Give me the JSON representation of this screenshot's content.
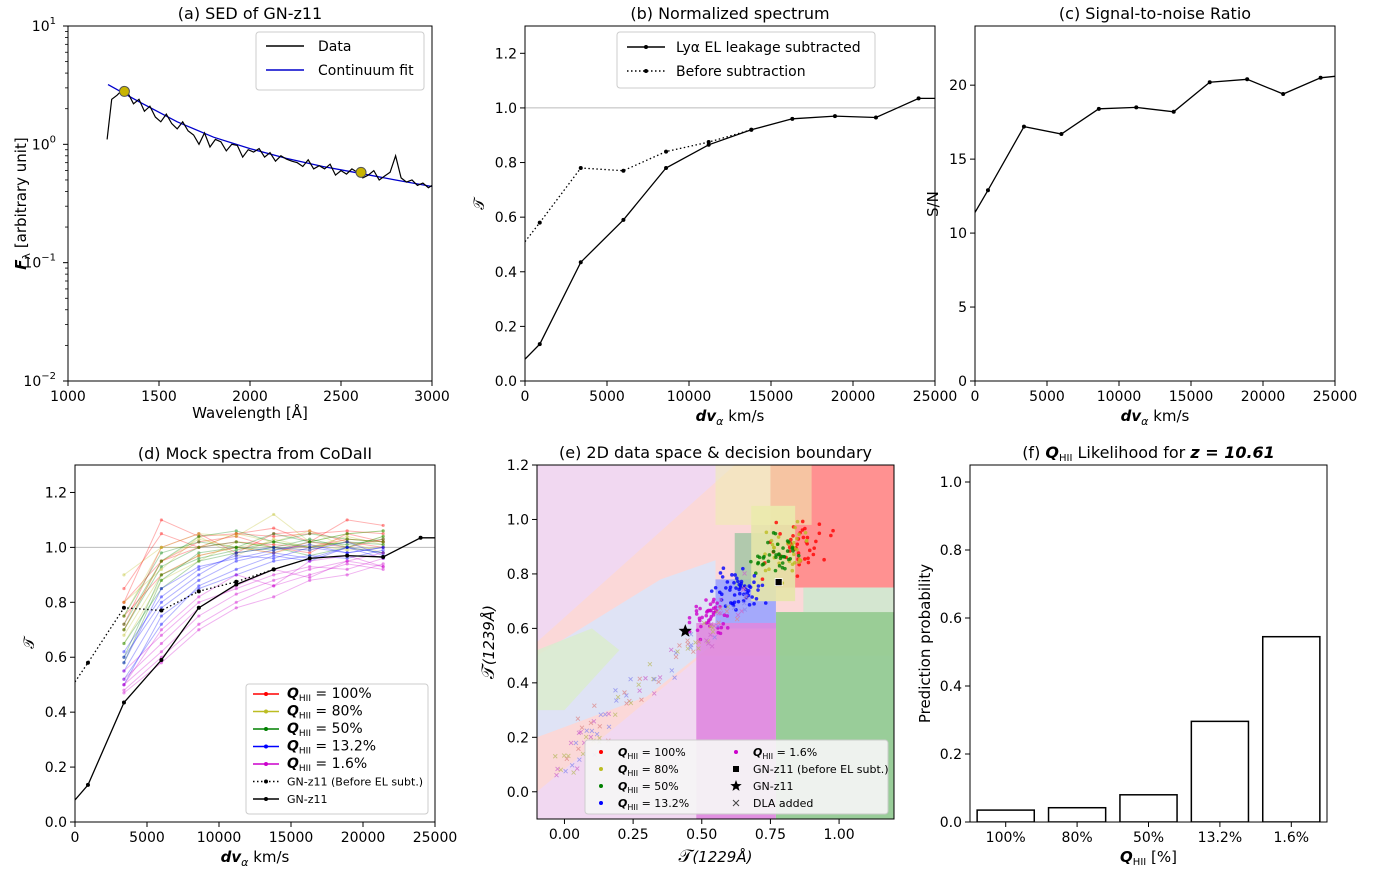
{
  "chart_data": [
    {
      "panel": "a",
      "type": "line",
      "title": "(a) SED of GN-z11",
      "xlabel": "Wavelength [Å]",
      "ylabel": "F_λ [arbitrary unit]",
      "yscale": "log",
      "xlim": [
        1000,
        3000
      ],
      "ylim": [
        0.01,
        10
      ],
      "xticks": [
        "1000",
        "1500",
        "2000",
        "2500",
        "3000"
      ],
      "yticks": [
        {
          "base": "10",
          "exp": "1",
          "v": 10
        },
        {
          "base": "10",
          "exp": "0",
          "v": 1
        },
        {
          "base": "10",
          "exp": "−1",
          "v": 0.1
        },
        {
          "base": "10",
          "exp": "−2",
          "v": 0.01
        }
      ],
      "legend_position": "upper right",
      "series": [
        {
          "name": "Data",
          "color": "#000000",
          "x": [
            1215,
            1240,
            1270,
            1300,
            1330,
            1360,
            1390,
            1420,
            1450,
            1480,
            1510,
            1540,
            1570,
            1600,
            1630,
            1660,
            1690,
            1720,
            1750,
            1780,
            1810,
            1840,
            1870,
            1900,
            1930,
            1960,
            1990,
            2020,
            2050,
            2080,
            2110,
            2140,
            2170,
            2200,
            2230,
            2260,
            2290,
            2320,
            2350,
            2380,
            2410,
            2440,
            2470,
            2500,
            2530,
            2560,
            2590,
            2620,
            2650,
            2680,
            2710,
            2740,
            2770,
            2800,
            2830,
            2860,
            2890,
            2920,
            2950,
            2980,
            3000
          ],
          "y": [
            1.1,
            2.4,
            2.6,
            2.9,
            2.7,
            2.2,
            2.4,
            1.9,
            2.1,
            1.7,
            1.55,
            1.8,
            1.5,
            1.35,
            1.55,
            1.3,
            1.2,
            1.0,
            1.25,
            0.95,
            1.1,
            1.05,
            0.88,
            1.0,
            0.98,
            0.78,
            0.9,
            0.86,
            0.92,
            0.78,
            0.85,
            0.72,
            0.8,
            0.75,
            0.72,
            0.7,
            0.65,
            0.74,
            0.62,
            0.66,
            0.62,
            0.68,
            0.55,
            0.6,
            0.56,
            0.62,
            0.58,
            0.52,
            0.55,
            0.6,
            0.5,
            0.54,
            0.58,
            0.8,
            0.52,
            0.48,
            0.5,
            0.45,
            0.47,
            0.43,
            0.45
          ]
        },
        {
          "name": "Continuum fit",
          "color": "#0000cc",
          "x": [
            1220,
            1400,
            1600,
            1800,
            2000,
            2200,
            2400,
            2600,
            2800,
            3000
          ],
          "y": [
            3.2,
            2.25,
            1.55,
            1.15,
            0.92,
            0.76,
            0.65,
            0.57,
            0.5,
            0.44
          ]
        },
        {
          "name": "",
          "type": "scatter",
          "color": "#c8b400",
          "x": [
            1310,
            2610
          ],
          "y": [
            2.8,
            0.58
          ]
        }
      ]
    },
    {
      "panel": "b",
      "type": "line",
      "title": "(b) Normalized spectrum",
      "xlabel": "km/s",
      "ylabel": "",
      "xlim": [
        0,
        25000
      ],
      "ylim": [
        0,
        1.3
      ],
      "xticks": [
        "0",
        "5000",
        "10000",
        "15000",
        "20000",
        "25000"
      ],
      "yticks": [
        "0.0",
        "0.2",
        "0.4",
        "0.6",
        "0.8",
        "1.0",
        "1.2"
      ],
      "hline": 1.0,
      "legend_position": "upper right",
      "series": [
        {
          "name": "Lyα EL leakage subtracted",
          "style": "solid",
          "x": [
            0,
            900,
            3400,
            6000,
            8600,
            11200,
            13800,
            16300,
            18900,
            21400,
            24000,
            25000
          ],
          "y": [
            0.08,
            0.135,
            0.435,
            0.59,
            0.78,
            0.865,
            0.92,
            0.96,
            0.97,
            0.965,
            1.035,
            1.035
          ]
        },
        {
          "name": "Before subtraction",
          "style": "dotted",
          "x": [
            0,
            900,
            3400,
            6000,
            8600,
            11200,
            13800
          ],
          "y": [
            0.51,
            0.58,
            0.78,
            0.77,
            0.84,
            0.875,
            0.92
          ]
        }
      ]
    },
    {
      "panel": "c",
      "type": "line",
      "title": "(c) Signal-to-noise Ratio",
      "xlabel": "km/s",
      "ylabel": "S/N",
      "xlim": [
        0,
        25000
      ],
      "ylim": [
        0,
        24
      ],
      "xticks": [
        "0",
        "5000",
        "10000",
        "15000",
        "20000",
        "25000"
      ],
      "yticks": [
        "0",
        "5",
        "10",
        "15",
        "20"
      ],
      "series": [
        {
          "name": "",
          "x": [
            0,
            900,
            3400,
            6000,
            8600,
            11200,
            13800,
            16300,
            18900,
            21400,
            24000,
            25000
          ],
          "y": [
            11.4,
            12.9,
            17.2,
            16.7,
            18.4,
            18.5,
            18.2,
            20.2,
            20.4,
            19.4,
            20.5,
            20.6
          ]
        }
      ]
    },
    {
      "panel": "d",
      "type": "line",
      "title": "(d) Mock spectra from CoDaII",
      "xlabel": "km/s",
      "ylabel": "",
      "xlim": [
        0,
        25000
      ],
      "ylim": [
        0,
        1.3
      ],
      "xticks": [
        "0",
        "5000",
        "10000",
        "15000",
        "20000",
        "25000"
      ],
      "yticks": [
        "0.0",
        "0.2",
        "0.4",
        "0.6",
        "0.8",
        "1.0",
        "1.2"
      ],
      "hline": 1.0,
      "legend_position": "lower right",
      "legend": [
        {
          "label": "= 100%",
          "color": "#ff0000",
          "style": "solid"
        },
        {
          "label": "= 80%",
          "color": "#bcbd22",
          "style": "solid"
        },
        {
          "label": "= 50%",
          "color": "#008000",
          "style": "solid"
        },
        {
          "label": "= 13.2%",
          "color": "#0000ff",
          "style": "solid"
        },
        {
          "label": "= 1.6%",
          "color": "#cc00cc",
          "style": "solid"
        },
        {
          "label": "GN-z11 (Before EL subt.)",
          "color": "#000000",
          "style": "dotted"
        },
        {
          "label": "GN-z11",
          "color": "#000000",
          "style": "solid"
        }
      ],
      "mock_x": [
        3400,
        6000,
        8600,
        11200,
        13800,
        16300,
        18900,
        21400
      ],
      "mock_groups": [
        {
          "color": "#ff0000",
          "curves": [
            [
              0.8,
              1.1,
              1.04,
              1.05,
              1.04,
              1.05,
              1.06,
              1.05
            ],
            [
              0.7,
              0.95,
              1.0,
              1.02,
              1.01,
              1.0,
              1.03,
              1.02
            ],
            [
              0.85,
              1.05,
              1.0,
              1.05,
              1.07,
              1.02,
              1.1,
              1.08
            ],
            [
              0.75,
              0.9,
              0.97,
              1.0,
              0.98,
              1.02,
              1.0,
              1.03
            ],
            [
              0.72,
              1.0,
              1.05,
              0.98,
              1.05,
              1.06,
              1.02,
              1.0
            ],
            [
              0.8,
              0.95,
              1.02,
              1.04,
              1.0,
              0.98,
              1.05,
              1.02
            ]
          ]
        },
        {
          "color": "#bcbd22",
          "curves": [
            [
              0.7,
              0.95,
              1.03,
              1.0,
              1.02,
              1.0,
              1.04,
              1.01
            ],
            [
              0.9,
              1.0,
              1.05,
              1.04,
              1.12,
              1.02,
              1.05,
              1.06
            ],
            [
              0.68,
              0.9,
              0.97,
              1.0,
              0.98,
              1.01,
              0.99,
              1.0
            ],
            [
              0.75,
              1.0,
              1.0,
              1.05,
              1.02,
              1.06,
              1.0,
              1.04
            ],
            [
              0.8,
              0.92,
              1.04,
              0.97,
              1.03,
              1.0,
              1.02,
              0.98
            ],
            [
              0.65,
              0.88,
              0.95,
              1.02,
              1.0,
              0.99,
              1.03,
              1.02
            ]
          ]
        },
        {
          "color": "#008000",
          "curves": [
            [
              0.7,
              0.93,
              1.0,
              1.02,
              1.0,
              1.03,
              1.0,
              1.04
            ],
            [
              0.6,
              0.9,
              0.96,
              0.99,
              1.02,
              1.0,
              1.02,
              1.01
            ],
            [
              0.75,
              0.98,
              1.02,
              1.0,
              1.05,
              1.02,
              1.05,
              1.06
            ],
            [
              0.65,
              0.85,
              0.95,
              0.98,
              1.0,
              0.97,
              1.0,
              0.98
            ],
            [
              0.72,
              0.95,
              1.04,
              1.06,
              1.02,
              1.05,
              1.03,
              1.02
            ],
            [
              0.58,
              0.88,
              0.98,
              1.0,
              0.99,
              1.02,
              1.01,
              1.03
            ]
          ]
        },
        {
          "color": "#0000ff",
          "curves": [
            [
              0.55,
              0.78,
              0.88,
              0.95,
              0.98,
              0.96,
              1.0,
              0.98
            ],
            [
              0.62,
              0.82,
              0.92,
              0.97,
              0.96,
              1.0,
              0.98,
              1.0
            ],
            [
              0.5,
              0.75,
              0.85,
              0.9,
              0.95,
              0.97,
              0.96,
              0.99
            ],
            [
              0.6,
              0.8,
              0.9,
              0.98,
              1.0,
              0.99,
              1.02,
              0.97
            ],
            [
              0.58,
              0.85,
              0.93,
              0.96,
              0.99,
              1.01,
              0.98,
              1.0
            ],
            [
              0.52,
              0.72,
              0.86,
              0.92,
              0.97,
              0.95,
              1.0,
              0.96
            ]
          ]
        },
        {
          "color": "#cc00cc",
          "curves": [
            [
              0.5,
              0.62,
              0.75,
              0.83,
              0.88,
              0.92,
              0.95,
              0.93
            ],
            [
              0.55,
              0.68,
              0.8,
              0.85,
              0.9,
              0.93,
              0.92,
              0.96
            ],
            [
              0.48,
              0.6,
              0.72,
              0.8,
              0.86,
              0.9,
              0.94,
              0.92
            ],
            [
              0.52,
              0.65,
              0.78,
              0.86,
              0.92,
              0.89,
              0.95,
              0.98
            ],
            [
              0.47,
              0.58,
              0.7,
              0.78,
              0.82,
              0.88,
              0.9,
              0.94
            ],
            [
              0.5,
              0.7,
              0.82,
              0.9,
              0.86,
              0.95,
              0.97,
              0.93
            ]
          ]
        }
      ],
      "series": [
        {
          "name": "GN-z11 (Before EL subt.)",
          "style": "dotted",
          "x": [
            0,
            900,
            3400,
            6000,
            8600,
            11200,
            13800
          ],
          "y": [
            0.51,
            0.58,
            0.78,
            0.77,
            0.84,
            0.875,
            0.92
          ]
        },
        {
          "name": "GN-z11",
          "style": "solid",
          "x": [
            0,
            900,
            3400,
            6000,
            8600,
            11200,
            13800,
            16300,
            18900,
            21400,
            24000,
            25000
          ],
          "y": [
            0.08,
            0.135,
            0.435,
            0.59,
            0.78,
            0.865,
            0.92,
            0.96,
            0.97,
            0.965,
            1.035,
            1.035
          ]
        }
      ]
    },
    {
      "panel": "e",
      "type": "scatter",
      "title": "(e) 2D data space & decision boundary",
      "xlabel": "(1229Å)",
      "ylabel": "(1239Å)",
      "xlim": [
        -0.1,
        1.2
      ],
      "ylim": [
        -0.1,
        1.2
      ],
      "xticks": [
        "0.00",
        "0.25",
        "0.50",
        "0.75",
        "1.00"
      ],
      "yticks": [
        "0.0",
        "0.2",
        "0.4",
        "0.6",
        "0.8",
        "1.0",
        "1.2"
      ],
      "legend_position": "lower right",
      "legend": [
        {
          "label": "= 100%",
          "color": "#ff0000",
          "marker": "dot",
          "math": true
        },
        {
          "label": "= 80%",
          "color": "#bcbd22",
          "marker": "dot",
          "math": true
        },
        {
          "label": "= 50%",
          "color": "#008000",
          "marker": "dot",
          "math": true
        },
        {
          "label": "= 13.2%",
          "color": "#0000ff",
          "marker": "dot",
          "math": true
        },
        {
          "label": "= 1.6%",
          "color": "#cc00cc",
          "marker": "dot",
          "math": true
        },
        {
          "label": "GN-z11 (before EL subt.)",
          "color": "#000000",
          "marker": "square",
          "math": false
        },
        {
          "label": "GN-z11",
          "color": "#000000",
          "marker": "star",
          "math": false
        },
        {
          "label": "DLA added",
          "color": "#444444",
          "marker": "x",
          "math": false
        }
      ],
      "regions": [
        {
          "color": "#ff8a8a",
          "x": [
            0.75,
            1.2
          ],
          "y": [
            0.75,
            1.2
          ]
        },
        {
          "color": "#8fcc8f",
          "x": [
            0.77,
            1.2
          ],
          "y": [
            -0.1,
            0.66
          ]
        },
        {
          "color": "#cfe8cf",
          "x": [
            0.87,
            1.2
          ],
          "y": [
            0.66,
            0.75
          ]
        },
        {
          "color": "#9aa4ff",
          "x": [
            0.55,
            0.77
          ],
          "y": [
            0.6,
            0.78
          ]
        },
        {
          "color": "#df88df",
          "x": [
            0.48,
            0.77
          ],
          "y": [
            -0.1,
            0.62
          ]
        },
        {
          "color": "#a8c8a8",
          "x": [
            0.62,
            0.77
          ],
          "y": [
            0.75,
            0.95
          ]
        },
        {
          "color": "#e6e6aa",
          "x": [
            0.68,
            0.84
          ],
          "y": [
            0.7,
            1.05
          ]
        }
      ],
      "points": {
        "marker_gn_square": {
          "x": 0.78,
          "y": 0.77
        },
        "marker_gn_star": {
          "x": 0.44,
          "y": 0.59
        }
      }
    },
    {
      "panel": "f",
      "type": "bar",
      "title": "Likelihood for",
      "xlabel": "[%]",
      "ylabel": "Prediction probability",
      "categories": [
        "100%",
        "80%",
        "50%",
        "13.2%",
        "1.6%"
      ],
      "values": [
        0.035,
        0.042,
        0.08,
        0.296,
        0.545
      ],
      "ylim": [
        0,
        1.05
      ],
      "yticks": [
        "0.0",
        "0.2",
        "0.4",
        "0.6",
        "0.8",
        "1.0"
      ]
    }
  ],
  "labels": {
    "tau": "𝒯",
    "dv": "dv",
    "alpha_sub": "α",
    "q": "Q",
    "q_sub": "HII",
    "z_eq": "z = 10.61",
    "f_prefix": "(f)",
    "f_lambda_sub": "λ"
  }
}
